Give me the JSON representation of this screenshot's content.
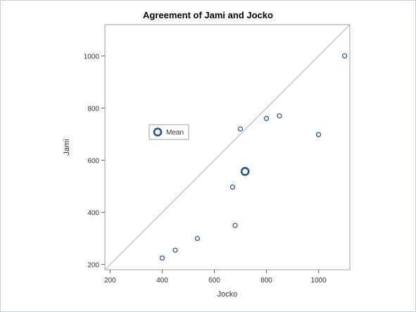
{
  "chart_data": {
    "type": "scatter",
    "title": "Agreement of Jami and Jocko",
    "xlabel": "Jocko",
    "ylabel": "Jami",
    "xlim": [
      180,
      1120
    ],
    "ylim": [
      180,
      1120
    ],
    "xticks": [
      200,
      400,
      600,
      800,
      1000
    ],
    "yticks": [
      200,
      400,
      600,
      800,
      1000
    ],
    "xtick_labels": [
      "200",
      "400",
      "600",
      "800",
      "1000"
    ],
    "ytick_labels": [
      "200",
      "400",
      "600",
      "800",
      "1000"
    ],
    "grid": false,
    "reference_line": "y = x",
    "series": [
      {
        "points": [
          {
            "x": 400,
            "y": 225
          },
          {
            "x": 450,
            "y": 255
          },
          {
            "x": 535,
            "y": 300
          },
          {
            "x": 670,
            "y": 497
          },
          {
            "x": 680,
            "y": 350
          },
          {
            "x": 700,
            "y": 720
          },
          {
            "x": 800,
            "y": 760
          },
          {
            "x": 850,
            "y": 770
          },
          {
            "x": 1000,
            "y": 698
          },
          {
            "x": 1100,
            "y": 1000
          }
        ],
        "color": "#1f4e9a"
      },
      {
        "name": "Mean",
        "points": [
          {
            "x": 718,
            "y": 557
          }
        ],
        "color": "#1f4e9a"
      }
    ],
    "legend": {
      "placement": "inside-left",
      "entries": [
        "Mean"
      ]
    }
  }
}
